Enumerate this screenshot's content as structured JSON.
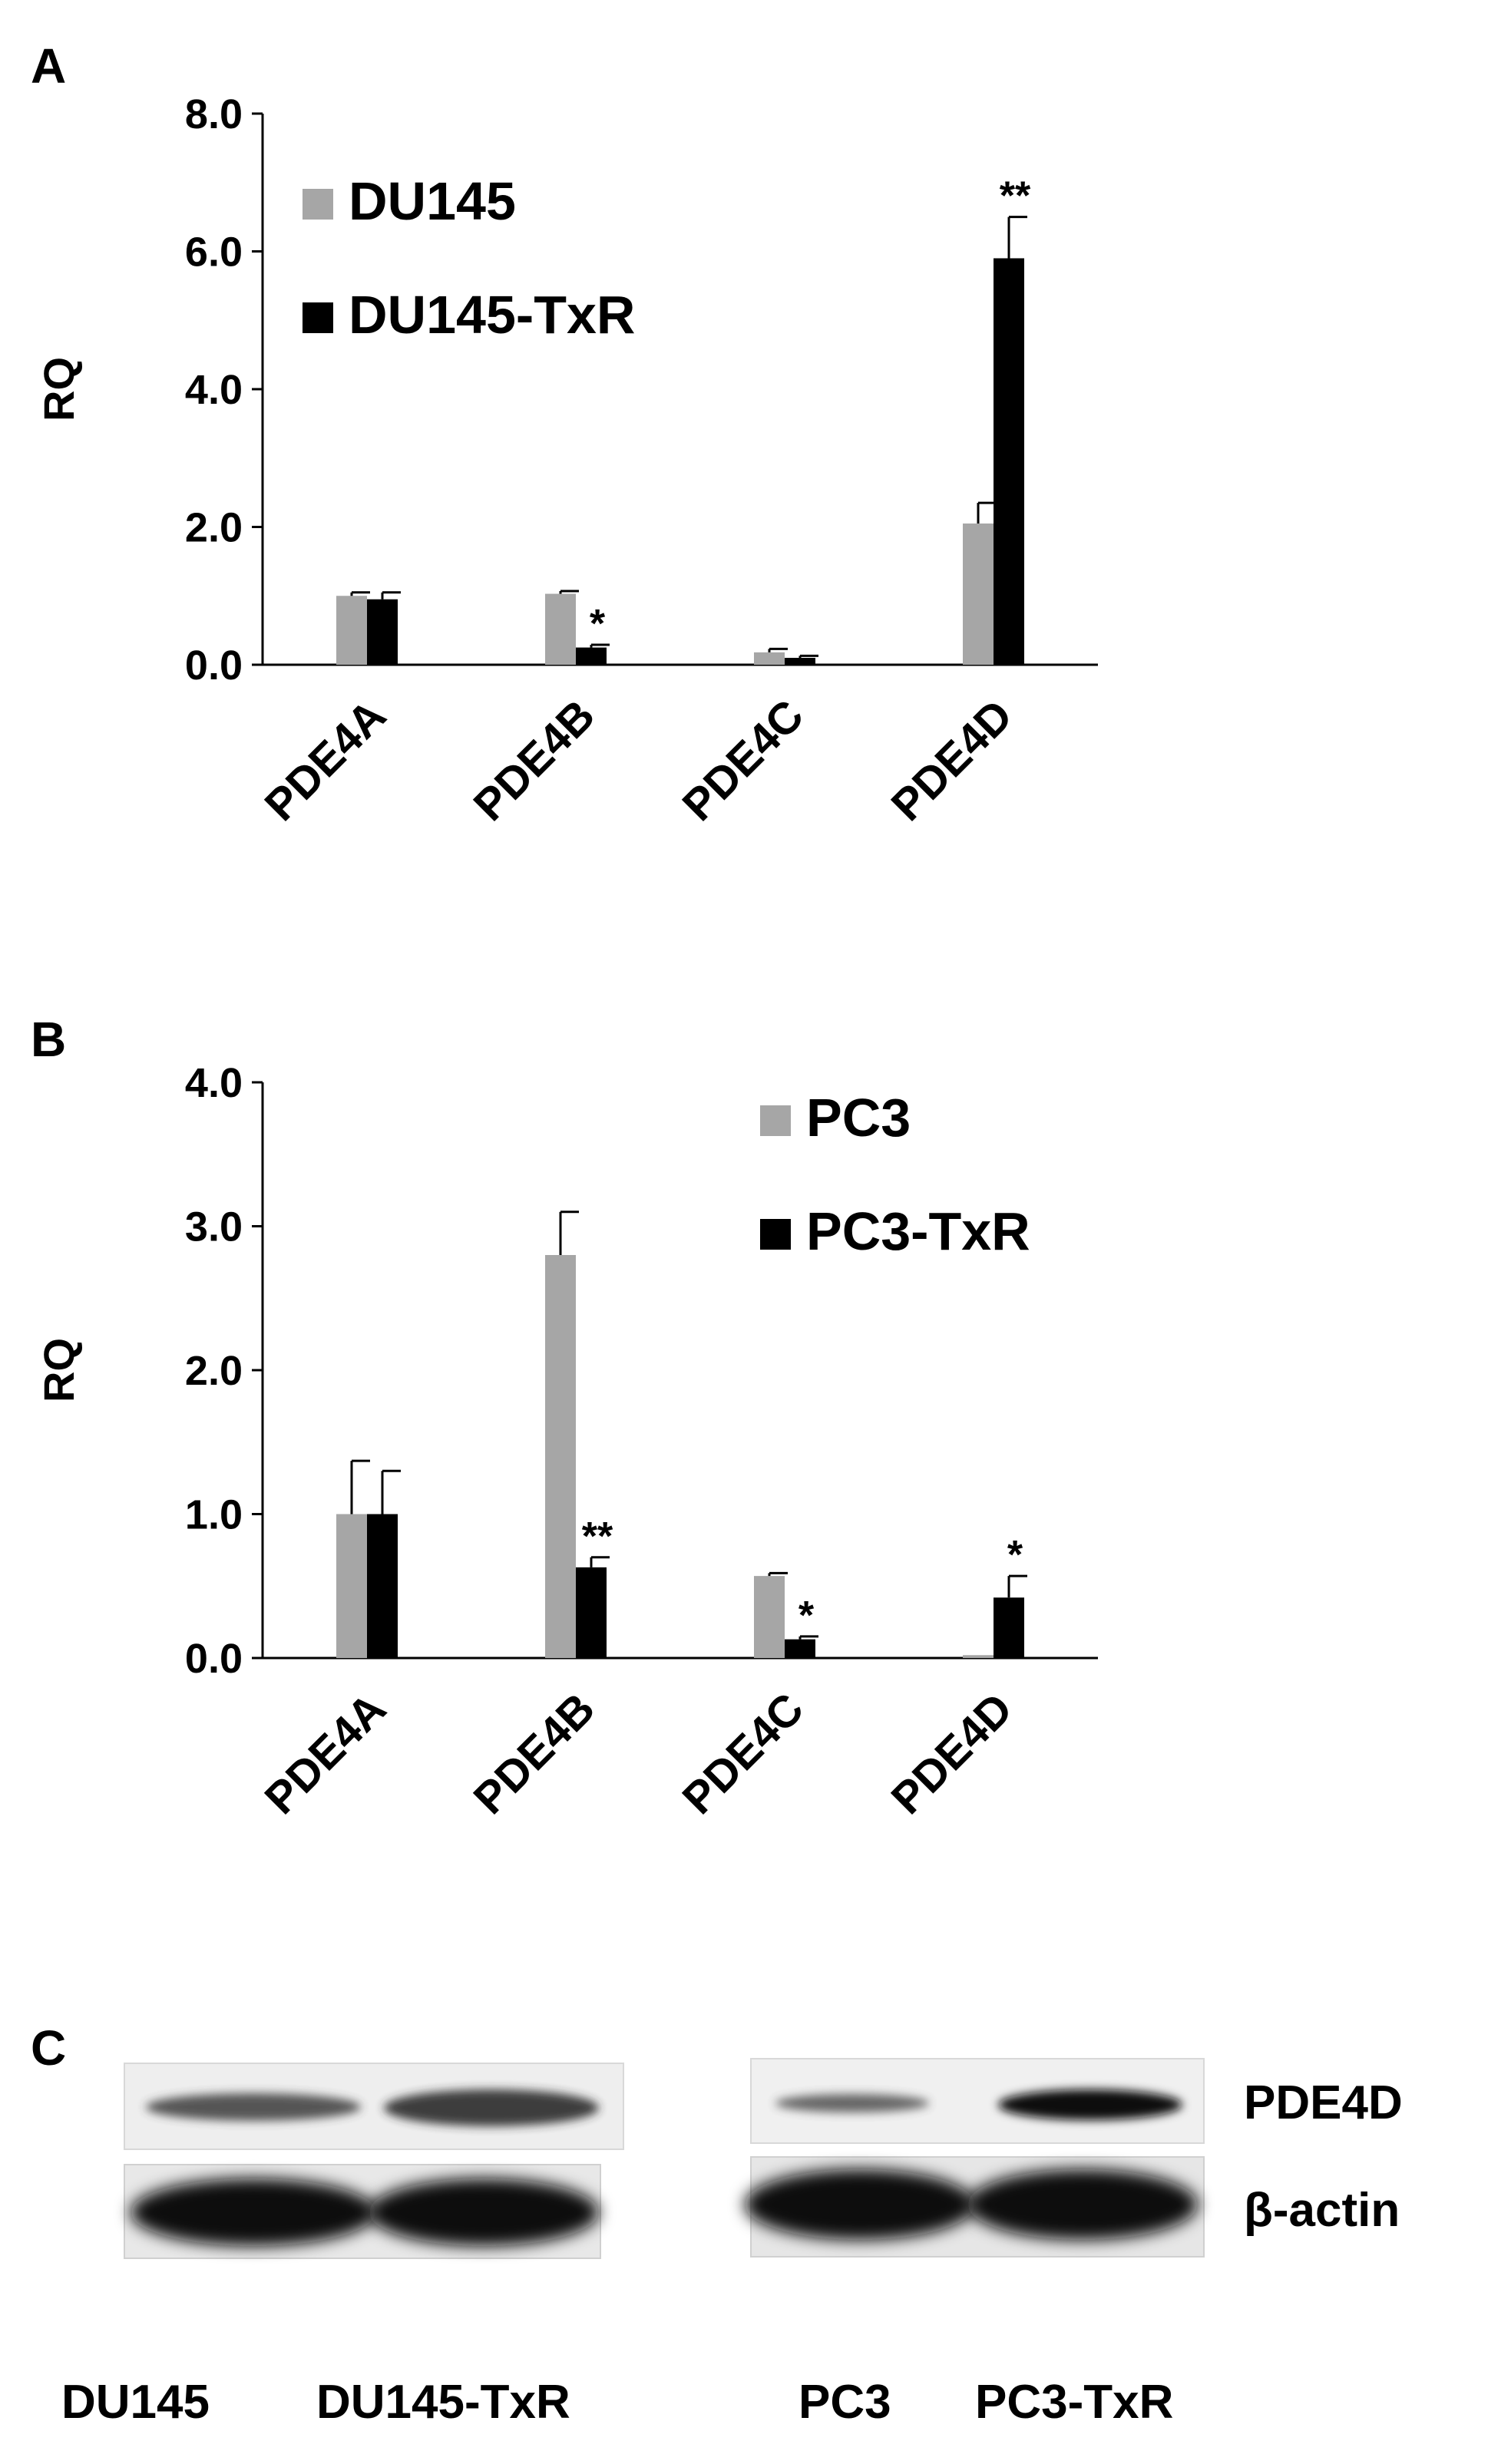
{
  "chart_data": [
    {
      "panel": "A",
      "type": "bar",
      "ylabel": "RQ",
      "ylim": [
        0,
        8
      ],
      "yticks": [
        "0.0",
        "2.0",
        "4.0",
        "6.0",
        "8.0"
      ],
      "categories": [
        "PDE4A",
        "PDE4B",
        "PDE4C",
        "PDE4D"
      ],
      "series": [
        {
          "name": "DU145",
          "color": "#a6a6a6",
          "values": [
            1.0,
            1.03,
            0.18,
            2.05
          ],
          "errors": [
            0.05,
            0.04,
            0.05,
            0.3
          ]
        },
        {
          "name": "DU145-TxR",
          "color": "#000000",
          "values": [
            0.95,
            0.25,
            0.1,
            5.9
          ],
          "errors": [
            0.1,
            0.04,
            0.03,
            0.6
          ]
        }
      ],
      "significance": [
        "",
        "*",
        "",
        "**"
      ],
      "legend": "top-left",
      "grid": false
    },
    {
      "panel": "B",
      "type": "bar",
      "ylabel": "RQ",
      "ylim": [
        0,
        4
      ],
      "yticks": [
        "0.0",
        "1.0",
        "2.0",
        "3.0",
        "4.0"
      ],
      "categories": [
        "PDE4A",
        "PDE4B",
        "PDE4C",
        "PDE4D"
      ],
      "series": [
        {
          "name": "PC3",
          "color": "#a6a6a6",
          "values": [
            1.0,
            2.8,
            0.57,
            0.02
          ],
          "errors": [
            0.37,
            0.3,
            0.02,
            0.0
          ]
        },
        {
          "name": "PC3-TxR",
          "color": "#000000",
          "values": [
            1.0,
            0.63,
            0.13,
            0.42
          ],
          "errors": [
            0.3,
            0.07,
            0.02,
            0.15
          ]
        }
      ],
      "significance": [
        "",
        "**",
        "*",
        "*"
      ],
      "legend": "top-right",
      "grid": false
    }
  ],
  "blot": {
    "panel": "C",
    "left_lanes": [
      "DU145",
      "DU145-TxR"
    ],
    "right_lanes": [
      "PC3",
      "PC3-TxR"
    ],
    "row_labels": [
      "PDE4D",
      "β-actin"
    ]
  }
}
